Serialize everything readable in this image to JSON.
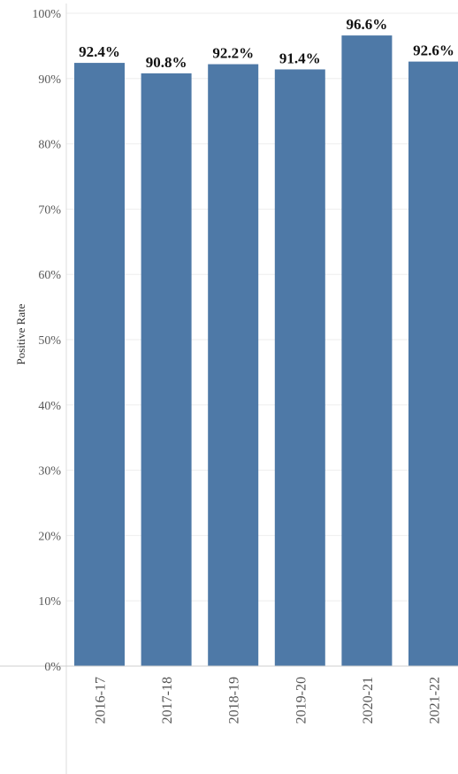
{
  "chart_data": {
    "type": "bar",
    "title": "",
    "xlabel": "",
    "ylabel": "Positive Rate",
    "categories": [
      "2016-17",
      "2017-18",
      "2018-19",
      "2019-20",
      "2020-21",
      "2021-22"
    ],
    "values": [
      92.4,
      90.8,
      92.2,
      91.4,
      96.6,
      92.6
    ],
    "data_labels": [
      "92.4%",
      "90.8%",
      "92.2%",
      "91.4%",
      "96.6%",
      "92.6%"
    ],
    "yticks": [
      "0%",
      "10%",
      "20%",
      "30%",
      "40%",
      "50%",
      "60%",
      "70%",
      "80%",
      "90%",
      "100%"
    ],
    "ylim": [
      0,
      100
    ],
    "grid": true,
    "bar_color": "#4e79a7",
    "legend": "none"
  }
}
